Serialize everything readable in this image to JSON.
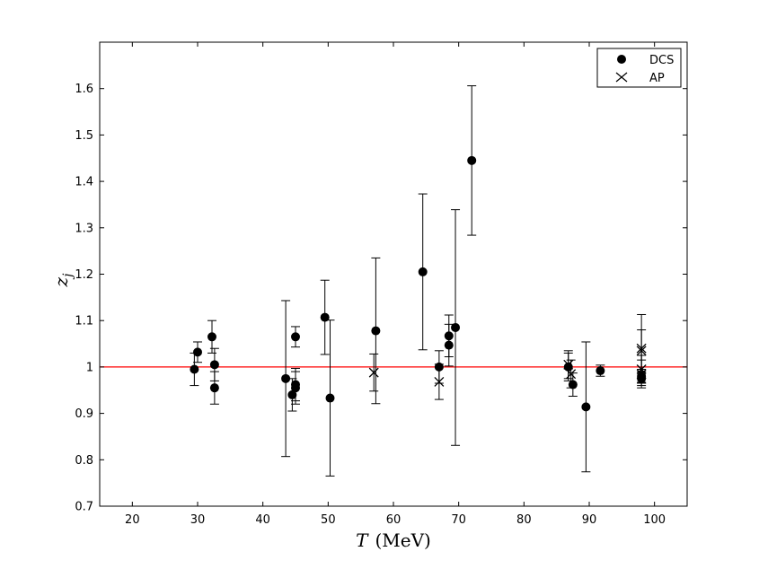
{
  "chart_data": {
    "type": "scatter",
    "title": "",
    "xlabel_var": "T",
    "xlabel_unit": "(MeV)",
    "ylabel_var": "z",
    "ylabel_sub": "j",
    "xlim": [
      15,
      105
    ],
    "ylim": [
      0.7,
      1.7
    ],
    "xticks": [
      20,
      30,
      40,
      50,
      60,
      70,
      80,
      90,
      100
    ],
    "yticks": [
      0.7,
      0.8,
      0.9,
      1,
      1.1,
      1.2,
      1.3,
      1.4,
      1.5,
      1.6
    ],
    "xtick_labels": [
      "20",
      "30",
      "40",
      "50",
      "60",
      "70",
      "80",
      "90",
      "100"
    ],
    "ytick_labels": [
      "0.7",
      "0.8",
      "0.9",
      "1",
      "1.1",
      "1.2",
      "1.3",
      "1.4",
      "1.5",
      "1.6"
    ],
    "grid": false,
    "legend_position": "top-right",
    "reference_line": {
      "y": 1.0,
      "color": "#ff0000"
    },
    "series": [
      {
        "name": "DCS",
        "marker": "filled-circle",
        "color": "#000000",
        "points": [
          {
            "x": 29.5,
            "y": 0.995,
            "err": 0.035
          },
          {
            "x": 30.0,
            "y": 1.032,
            "err": 0.022
          },
          {
            "x": 32.2,
            "y": 1.065,
            "err": 0.035
          },
          {
            "x": 32.6,
            "y": 1.005,
            "err": 0.035
          },
          {
            "x": 32.6,
            "y": 0.955,
            "err": 0.035
          },
          {
            "x": 43.5,
            "y": 0.975,
            "err": 0.168
          },
          {
            "x": 44.5,
            "y": 0.94,
            "err": 0.035
          },
          {
            "x": 45.0,
            "y": 1.065,
            "err": 0.022
          },
          {
            "x": 45.0,
            "y": 0.962,
            "err": 0.035
          },
          {
            "x": 45.0,
            "y": 0.955,
            "err": 0.035
          },
          {
            "x": 49.5,
            "y": 1.107,
            "err": 0.08
          },
          {
            "x": 50.3,
            "y": 0.933,
            "err": 0.168
          },
          {
            "x": 57.3,
            "y": 1.078,
            "err": 0.157
          },
          {
            "x": 64.5,
            "y": 1.205,
            "err": 0.168
          },
          {
            "x": 67.0,
            "y": 1.0,
            "err": 0.035
          },
          {
            "x": 68.5,
            "y": 1.067,
            "err": 0.045
          },
          {
            "x": 68.5,
            "y": 1.047,
            "err": 0.045
          },
          {
            "x": 69.5,
            "y": 1.085,
            "err": 0.254
          },
          {
            "x": 72.0,
            "y": 1.445,
            "err": 0.161
          },
          {
            "x": 86.8,
            "y": 1.0,
            "err": 0.03
          },
          {
            "x": 87.5,
            "y": 0.962,
            "err": 0.025
          },
          {
            "x": 89.5,
            "y": 0.914,
            "err": 0.14
          },
          {
            "x": 91.7,
            "y": 0.992,
            "err": 0.012
          },
          {
            "x": 98.0,
            "y": 0.975,
            "err": 0.015
          },
          {
            "x": 98.0,
            "y": 0.98,
            "err": 0.015
          }
        ]
      },
      {
        "name": "AP",
        "marker": "cross",
        "color": "#000000",
        "points": [
          {
            "x": 57.0,
            "y": 0.988,
            "err": 0.04
          },
          {
            "x": 67.0,
            "y": 0.968,
            "err": 0.038
          },
          {
            "x": 86.8,
            "y": 1.005,
            "err": 0.03
          },
          {
            "x": 87.2,
            "y": 0.985,
            "err": 0.03
          },
          {
            "x": 98.0,
            "y": 1.04,
            "err": 0.073
          },
          {
            "x": 98.0,
            "y": 1.035,
            "err": 0.045
          },
          {
            "x": 98.0,
            "y": 0.995,
            "err": 0.03
          },
          {
            "x": 98.0,
            "y": 0.985,
            "err": 0.03
          }
        ]
      }
    ]
  }
}
